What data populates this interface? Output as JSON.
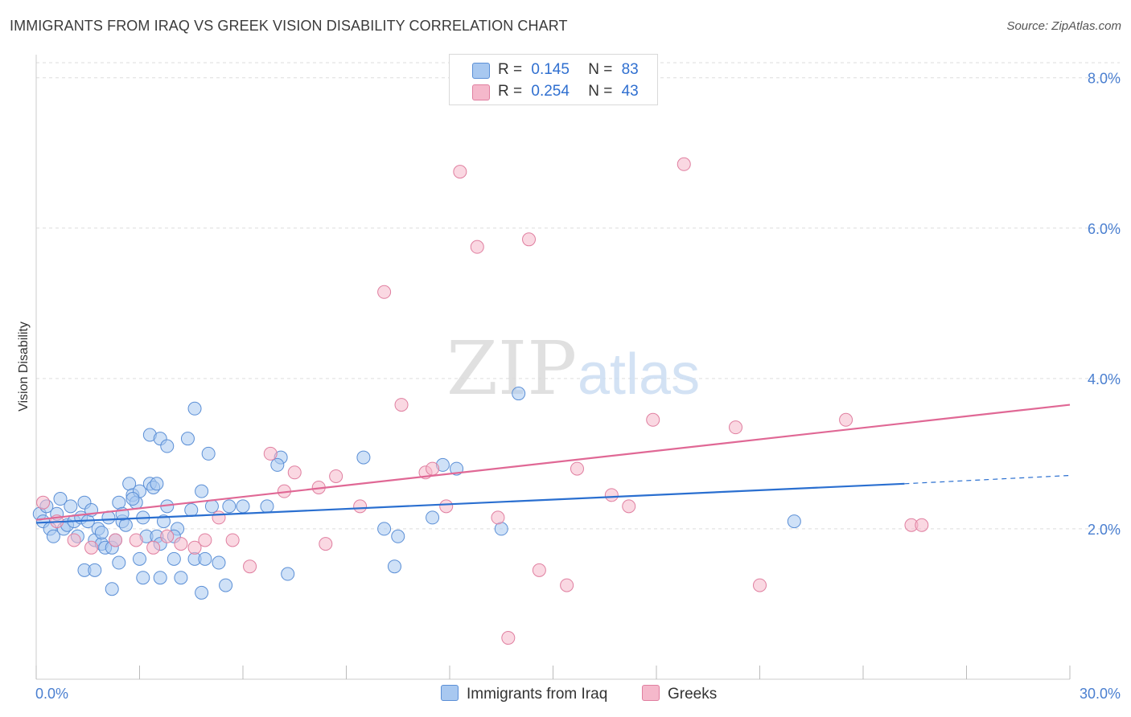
{
  "title": "IMMIGRANTS FROM IRAQ VS GREEK VISION DISABILITY CORRELATION CHART",
  "source": "Source: ZipAtlas.com",
  "watermark": {
    "zip": "ZIP",
    "atlas": "atlas"
  },
  "legend": {
    "rows": [
      {
        "r_label": "R =",
        "r_value": "0.145",
        "n_label": "N =",
        "n_value": "83"
      },
      {
        "r_label": "R =",
        "r_value": "0.254",
        "n_label": "N =",
        "n_value": "43"
      }
    ]
  },
  "bottom_legend": {
    "series1": "Immigrants from Iraq",
    "series2": "Greeks"
  },
  "colors": {
    "blue_fill": "#a8c8f0",
    "blue_stroke": "#5b8fd6",
    "blue_line": "#2a6fd0",
    "pink_fill": "#f5b8cb",
    "pink_stroke": "#e07fa0",
    "pink_line": "#e06895",
    "tick": "#4a7fd0",
    "grid": "#dddddd"
  },
  "chart_data": {
    "type": "scatter",
    "title": "IMMIGRANTS FROM IRAQ VS GREEK VISION DISABILITY CORRELATION CHART",
    "xlabel": "",
    "ylabel": "Vision Disability",
    "xlim": [
      0,
      30
    ],
    "ylim": [
      0,
      8.2
    ],
    "x_tick_labels": [
      "0.0%",
      "30.0%"
    ],
    "y_ticks": [
      2,
      4,
      6,
      8
    ],
    "y_tick_labels": [
      "2.0%",
      "4.0%",
      "6.0%",
      "8.0%"
    ],
    "series": [
      {
        "name": "Immigrants from Iraq",
        "R": 0.145,
        "N": 83,
        "trend": {
          "x0": 0,
          "y0": 2.08,
          "x1": 25.2,
          "y1": 2.6,
          "dash_to_x": 30,
          "dash_to_y": 2.71
        },
        "points": [
          [
            0.1,
            2.2
          ],
          [
            0.2,
            2.1
          ],
          [
            0.3,
            2.3
          ],
          [
            0.4,
            2.0
          ],
          [
            0.5,
            1.9
          ],
          [
            0.6,
            2.2
          ],
          [
            0.7,
            2.4
          ],
          [
            0.8,
            2.0
          ],
          [
            0.9,
            2.05
          ],
          [
            1.0,
            2.3
          ],
          [
            1.1,
            2.1
          ],
          [
            1.2,
            1.9
          ],
          [
            1.3,
            2.15
          ],
          [
            1.4,
            2.35
          ],
          [
            1.5,
            2.1
          ],
          [
            1.6,
            2.25
          ],
          [
            1.7,
            1.85
          ],
          [
            1.8,
            2.0
          ],
          [
            1.9,
            1.8
          ],
          [
            2.0,
            1.75
          ],
          [
            2.1,
            2.15
          ],
          [
            2.2,
            1.75
          ],
          [
            2.3,
            1.85
          ],
          [
            2.4,
            2.35
          ],
          [
            2.5,
            2.1
          ],
          [
            2.6,
            2.05
          ],
          [
            2.7,
            2.6
          ],
          [
            2.8,
            2.45
          ],
          [
            2.9,
            2.35
          ],
          [
            3.0,
            2.5
          ],
          [
            3.1,
            2.15
          ],
          [
            3.2,
            1.9
          ],
          [
            3.3,
            2.6
          ],
          [
            3.4,
            2.55
          ],
          [
            3.5,
            1.9
          ],
          [
            3.6,
            1.8
          ],
          [
            3.7,
            2.1
          ],
          [
            3.8,
            2.3
          ],
          [
            1.4,
            1.45
          ],
          [
            1.7,
            1.45
          ],
          [
            2.2,
            1.2
          ],
          [
            2.4,
            1.55
          ],
          [
            3.1,
            1.35
          ],
          [
            3.6,
            1.35
          ],
          [
            4.0,
            1.6
          ],
          [
            4.2,
            1.35
          ],
          [
            4.6,
            1.6
          ],
          [
            4.8,
            1.15
          ],
          [
            4.9,
            1.6
          ],
          [
            5.3,
            1.55
          ],
          [
            5.5,
            1.25
          ],
          [
            3.3,
            3.25
          ],
          [
            3.6,
            3.2
          ],
          [
            3.8,
            3.1
          ],
          [
            3.5,
            2.6
          ],
          [
            4.1,
            2.0
          ],
          [
            4.5,
            2.25
          ],
          [
            4.4,
            3.2
          ],
          [
            4.6,
            3.6
          ],
          [
            4.8,
            2.5
          ],
          [
            5.0,
            3.0
          ],
          [
            5.1,
            2.3
          ],
          [
            5.6,
            2.3
          ],
          [
            7.1,
            2.95
          ],
          [
            7.3,
            1.4
          ],
          [
            9.5,
            2.95
          ],
          [
            10.1,
            2.0
          ],
          [
            10.4,
            1.5
          ],
          [
            10.5,
            1.9
          ],
          [
            11.5,
            2.15
          ],
          [
            11.8,
            2.85
          ],
          [
            12.2,
            2.8
          ],
          [
            13.5,
            2.0
          ],
          [
            14.0,
            3.8
          ],
          [
            22.0,
            2.1
          ],
          [
            7.0,
            2.85
          ],
          [
            4.0,
            1.9
          ],
          [
            3.0,
            1.6
          ],
          [
            2.8,
            2.4
          ],
          [
            1.9,
            1.95
          ],
          [
            2.5,
            2.2
          ],
          [
            6.0,
            2.3
          ],
          [
            6.7,
            2.3
          ]
        ]
      },
      {
        "name": "Greeks",
        "R": 0.254,
        "N": 43,
        "trend": {
          "x0": 0,
          "y0": 2.12,
          "x1": 30,
          "y1": 3.65
        },
        "points": [
          [
            0.2,
            2.35
          ],
          [
            0.6,
            2.1
          ],
          [
            1.1,
            1.85
          ],
          [
            1.6,
            1.75
          ],
          [
            2.3,
            1.85
          ],
          [
            2.9,
            1.85
          ],
          [
            3.4,
            1.75
          ],
          [
            3.8,
            1.9
          ],
          [
            4.2,
            1.8
          ],
          [
            4.6,
            1.75
          ],
          [
            4.9,
            1.85
          ],
          [
            5.3,
            2.15
          ],
          [
            5.7,
            1.85
          ],
          [
            6.2,
            1.5
          ],
          [
            6.8,
            3.0
          ],
          [
            7.2,
            2.5
          ],
          [
            7.5,
            2.75
          ],
          [
            8.2,
            2.55
          ],
          [
            8.4,
            1.8
          ],
          [
            8.7,
            2.7
          ],
          [
            9.4,
            2.3
          ],
          [
            10.1,
            5.15
          ],
          [
            10.6,
            3.65
          ],
          [
            11.3,
            2.75
          ],
          [
            11.5,
            2.8
          ],
          [
            11.9,
            2.3
          ],
          [
            12.3,
            6.75
          ],
          [
            12.8,
            5.75
          ],
          [
            13.4,
            2.15
          ],
          [
            13.7,
            0.55
          ],
          [
            14.3,
            5.85
          ],
          [
            14.6,
            1.45
          ],
          [
            15.4,
            1.25
          ],
          [
            15.7,
            2.8
          ],
          [
            16.7,
            2.45
          ],
          [
            17.2,
            2.3
          ],
          [
            17.9,
            3.45
          ],
          [
            18.8,
            6.85
          ],
          [
            20.3,
            3.35
          ],
          [
            21.0,
            1.25
          ],
          [
            23.5,
            3.45
          ],
          [
            25.4,
            2.05
          ],
          [
            25.7,
            2.05
          ]
        ]
      }
    ]
  }
}
